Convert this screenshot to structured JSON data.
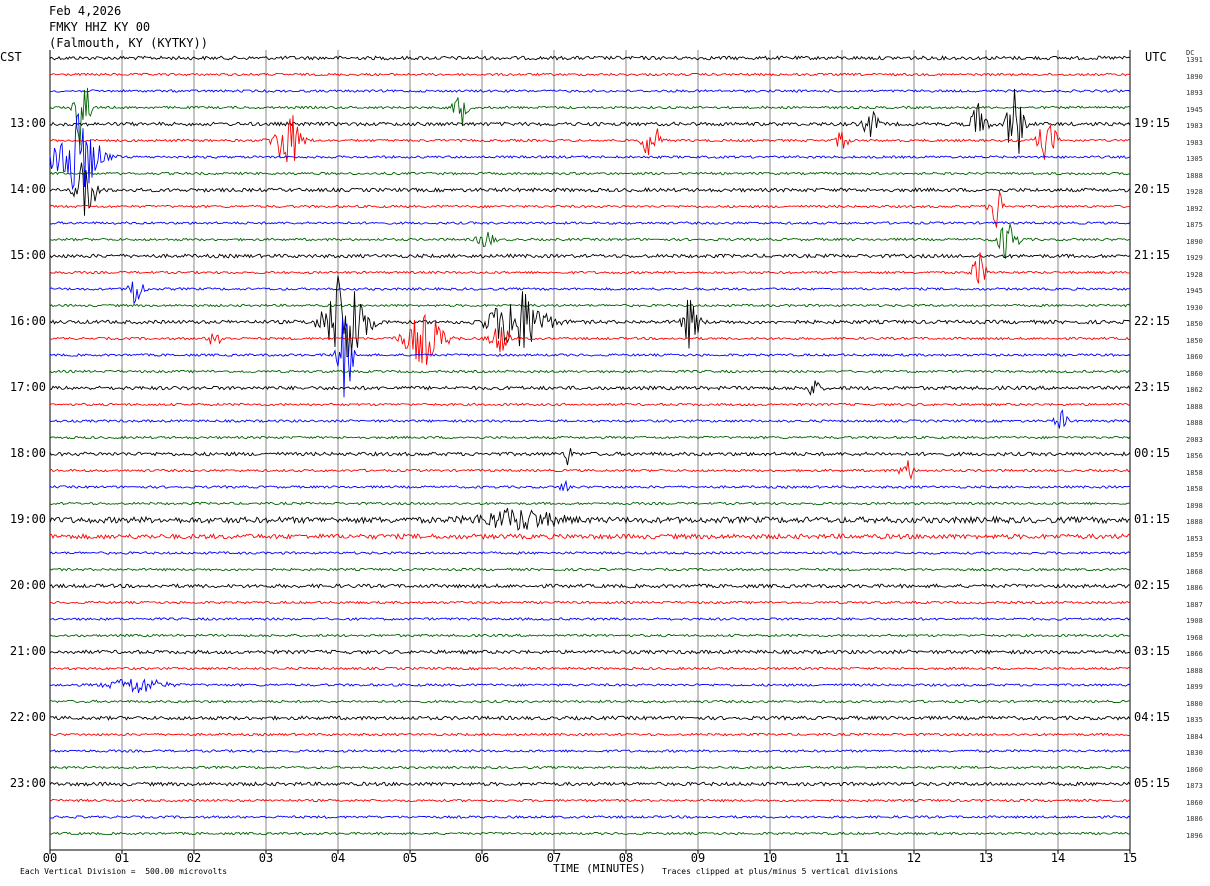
{
  "header": {
    "date": "Feb 4,2026",
    "station": "FMKY HHZ KY 00",
    "location": "(Falmouth, KY (KYTKY))"
  },
  "labels": {
    "left_tz": "CST",
    "right_tz": "UTC",
    "dc": "DC",
    "x_title": "TIME (MINUTES)",
    "scale_note": "Each Vertical Division =  500.00 microvolts",
    "clip_note": "Traces clipped at plus/minus 5 vertical divisions"
  },
  "chart_data": {
    "type": "line",
    "title": "",
    "xlabel": "TIME (MINUTES)",
    "xlim": [
      0,
      15
    ],
    "x_ticks": [
      "00",
      "01",
      "02",
      "03",
      "04",
      "05",
      "06",
      "07",
      "08",
      "09",
      "10",
      "11",
      "12",
      "13",
      "14",
      "15"
    ],
    "trace_count": 48,
    "trace_minutes": 15,
    "trace_colors": [
      "#000000",
      "#ff0000",
      "#0000ff",
      "#006400"
    ],
    "left_time_labels": [
      {
        "trace": 4,
        "label": "13:00"
      },
      {
        "trace": 8,
        "label": "14:00"
      },
      {
        "trace": 12,
        "label": "15:00"
      },
      {
        "trace": 16,
        "label": "16:00"
      },
      {
        "trace": 20,
        "label": "17:00"
      },
      {
        "trace": 24,
        "label": "18:00"
      },
      {
        "trace": 28,
        "label": "19:00"
      },
      {
        "trace": 32,
        "label": "20:00"
      },
      {
        "trace": 36,
        "label": "21:00"
      },
      {
        "trace": 40,
        "label": "22:00"
      },
      {
        "trace": 44,
        "label": "23:00"
      }
    ],
    "right_time_labels": [
      {
        "trace": 4,
        "label": "19:15"
      },
      {
        "trace": 8,
        "label": "20:15"
      },
      {
        "trace": 12,
        "label": "21:15"
      },
      {
        "trace": 16,
        "label": "22:15"
      },
      {
        "trace": 20,
        "label": "23:15"
      },
      {
        "trace": 24,
        "label": "00:15"
      },
      {
        "trace": 28,
        "label": "01:15"
      },
      {
        "trace": 32,
        "label": "02:15"
      },
      {
        "trace": 36,
        "label": "03:15"
      },
      {
        "trace": 40,
        "label": "04:15"
      },
      {
        "trace": 44,
        "label": "05:15"
      }
    ],
    "dc_offsets": [
      "1391",
      "1890",
      "1893",
      "1945",
      "1983",
      "1983",
      "1305",
      "1888",
      "1928",
      "1892",
      "1875",
      "1890",
      "1929",
      "1928",
      "1945",
      "1930",
      "1850",
      "1850",
      "1860",
      "1860",
      "1862",
      "1888",
      "1888",
      "2083",
      "1856",
      "1858",
      "1858",
      "1898",
      "1888",
      "1853",
      "1859",
      "1868",
      "1886",
      "1887",
      "1908",
      "1968",
      "1866",
      "1888",
      "1899",
      "1880",
      "1835",
      "1884",
      "1830",
      "1860",
      "1873",
      "1860",
      "1886",
      "1896"
    ],
    "events": [
      {
        "trace": 3,
        "minute": 0.45,
        "amp": 3.0,
        "width": 0.1
      },
      {
        "trace": 3,
        "minute": 5.7,
        "amp": 1.2,
        "width": 0.1
      },
      {
        "trace": 4,
        "minute": 11.4,
        "amp": 1.0,
        "width": 0.1
      },
      {
        "trace": 4,
        "minute": 12.9,
        "amp": 1.3,
        "width": 0.12
      },
      {
        "trace": 4,
        "minute": 13.4,
        "amp": 2.6,
        "width": 0.12
      },
      {
        "trace": 5,
        "minute": 3.3,
        "amp": 1.8,
        "width": 0.2
      },
      {
        "trace": 5,
        "minute": 8.35,
        "amp": 1.4,
        "width": 0.12
      },
      {
        "trace": 5,
        "minute": 11.0,
        "amp": 0.8,
        "width": 0.08
      },
      {
        "trace": 5,
        "minute": 13.85,
        "amp": 1.2,
        "width": 0.15
      },
      {
        "trace": 6,
        "minute": 0.35,
        "amp": 2.6,
        "width": 0.35
      },
      {
        "trace": 8,
        "minute": 0.5,
        "amp": 2.0,
        "width": 0.15
      },
      {
        "trace": 9,
        "minute": 13.15,
        "amp": 1.4,
        "width": 0.1
      },
      {
        "trace": 11,
        "minute": 13.3,
        "amp": 1.2,
        "width": 0.15
      },
      {
        "trace": 11,
        "minute": 6.05,
        "amp": 0.6,
        "width": 0.12
      },
      {
        "trace": 13,
        "minute": 12.9,
        "amp": 1.2,
        "width": 0.1
      },
      {
        "trace": 14,
        "minute": 1.2,
        "amp": 1.2,
        "width": 0.1
      },
      {
        "trace": 16,
        "minute": 4.1,
        "amp": 3.4,
        "width": 0.3
      },
      {
        "trace": 16,
        "minute": 6.5,
        "amp": 2.0,
        "width": 0.4
      },
      {
        "trace": 16,
        "minute": 8.9,
        "amp": 1.6,
        "width": 0.12
      },
      {
        "trace": 17,
        "minute": 5.2,
        "amp": 1.6,
        "width": 0.3
      },
      {
        "trace": 17,
        "minute": 6.25,
        "amp": 0.9,
        "width": 0.15
      },
      {
        "trace": 17,
        "minute": 2.3,
        "amp": 0.6,
        "width": 0.1
      },
      {
        "trace": 18,
        "minute": 4.1,
        "amp": 2.6,
        "width": 0.12
      },
      {
        "trace": 20,
        "minute": 10.6,
        "amp": 0.5,
        "width": 0.1
      },
      {
        "trace": 22,
        "minute": 14.05,
        "amp": 0.6,
        "width": 0.1
      },
      {
        "trace": 24,
        "minute": 7.2,
        "amp": 0.7,
        "width": 0.05
      },
      {
        "trace": 25,
        "minute": 11.9,
        "amp": 0.7,
        "width": 0.1
      },
      {
        "trace": 26,
        "minute": 7.15,
        "amp": 0.6,
        "width": 0.06
      },
      {
        "trace": 28,
        "minute": 6.5,
        "amp": 0.6,
        "width": 0.6
      },
      {
        "trace": 38,
        "minute": 1.2,
        "amp": 0.5,
        "width": 0.4
      }
    ]
  }
}
